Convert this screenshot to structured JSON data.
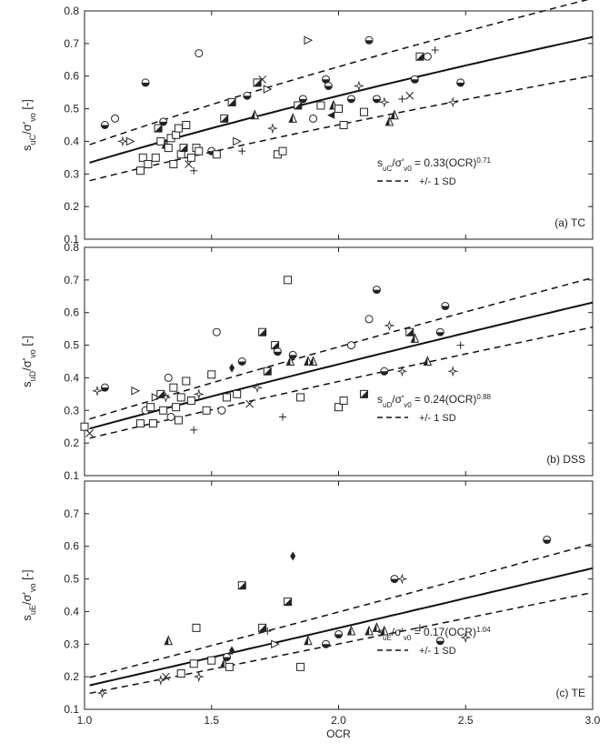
{
  "chart_data": [
    {
      "type": "scatter",
      "panel_label": "(a) TC",
      "ylabel_main": "s",
      "ylabel_sub1": "uC",
      "ylabel_mid": "/σ'",
      "ylabel_sub2": "vo",
      "ylabel_tail": " [-]",
      "eq_s": "s",
      "eq_s_sub": "uC",
      "eq_sigma": "/σ'",
      "eq_sigma_sub": "v0",
      "eq_body": " = 0.33(OCR)",
      "eq_exp": "0.71",
      "sd_label": "+/- 1 SD",
      "xlim": [
        1.0,
        3.0
      ],
      "ylim": [
        0.1,
        0.8
      ],
      "yticks": [
        0.1,
        0.2,
        0.3,
        0.4,
        0.5,
        0.6,
        0.7,
        0.8
      ],
      "fit": {
        "a": 0.33,
        "b": 0.71,
        "sd_factor": 0.165
      },
      "points": [
        [
          1.08,
          0.45,
          "hcirc"
        ],
        [
          1.12,
          0.47,
          "ocirc"
        ],
        [
          1.15,
          0.4,
          "star"
        ],
        [
          1.18,
          0.4,
          "tri"
        ],
        [
          1.22,
          0.31,
          "sq"
        ],
        [
          1.23,
          0.35,
          "sq"
        ],
        [
          1.25,
          0.33,
          "sq"
        ],
        [
          1.24,
          0.58,
          "hcirc"
        ],
        [
          1.28,
          0.35,
          "sq"
        ],
        [
          1.29,
          0.44,
          "dsq"
        ],
        [
          1.3,
          0.4,
          "sq"
        ],
        [
          1.31,
          0.46,
          "hcirc"
        ],
        [
          1.32,
          0.39,
          "dtri"
        ],
        [
          1.33,
          0.38,
          "sq"
        ],
        [
          1.34,
          0.41,
          "sq"
        ],
        [
          1.35,
          0.33,
          "sq"
        ],
        [
          1.36,
          0.42,
          "sq"
        ],
        [
          1.37,
          0.44,
          "sq"
        ],
        [
          1.38,
          0.36,
          "sq"
        ],
        [
          1.39,
          0.38,
          "dsq"
        ],
        [
          1.4,
          0.45,
          "sq"
        ],
        [
          1.41,
          0.33,
          "cross"
        ],
        [
          1.42,
          0.35,
          "sq"
        ],
        [
          1.43,
          0.31,
          "plus"
        ],
        [
          1.44,
          0.38,
          "sq"
        ],
        [
          1.45,
          0.37,
          "sq"
        ],
        [
          1.45,
          0.67,
          "ocirc"
        ],
        [
          1.5,
          0.37,
          "hcirc"
        ],
        [
          1.52,
          0.36,
          "sq"
        ],
        [
          1.55,
          0.47,
          "dsq"
        ],
        [
          1.58,
          0.52,
          "dsq"
        ],
        [
          1.6,
          0.4,
          "tri"
        ],
        [
          1.62,
          0.37,
          "plus"
        ],
        [
          1.64,
          0.54,
          "hcirc"
        ],
        [
          1.67,
          0.48,
          "dtri"
        ],
        [
          1.68,
          0.58,
          "dsq"
        ],
        [
          1.7,
          0.59,
          "cross"
        ],
        [
          1.72,
          0.56,
          "tri"
        ],
        [
          1.74,
          0.44,
          "star"
        ],
        [
          1.76,
          0.36,
          "sq"
        ],
        [
          1.78,
          0.37,
          "sq"
        ],
        [
          1.82,
          0.47,
          "dtri"
        ],
        [
          1.84,
          0.51,
          "dsq"
        ],
        [
          1.86,
          0.53,
          "hcirc"
        ],
        [
          1.88,
          0.71,
          "tri"
        ],
        [
          1.9,
          0.47,
          "ocirc"
        ],
        [
          1.93,
          0.51,
          "sq"
        ],
        [
          1.95,
          0.59,
          "hcirc"
        ],
        [
          1.96,
          0.57,
          "hcirc"
        ],
        [
          1.97,
          0.48,
          "ltri"
        ],
        [
          1.98,
          0.51,
          "dtri"
        ],
        [
          2.0,
          0.5,
          "sq"
        ],
        [
          2.02,
          0.45,
          "sq"
        ],
        [
          2.05,
          0.53,
          "hcirc"
        ],
        [
          2.08,
          0.57,
          "star"
        ],
        [
          2.1,
          0.49,
          "sq"
        ],
        [
          2.12,
          0.71,
          "hcirc"
        ],
        [
          2.15,
          0.53,
          "hcirc"
        ],
        [
          2.18,
          0.52,
          "star"
        ],
        [
          2.2,
          0.46,
          "dtri"
        ],
        [
          2.22,
          0.48,
          "dtri"
        ],
        [
          2.25,
          0.53,
          "plus"
        ],
        [
          2.28,
          0.54,
          "cross"
        ],
        [
          2.3,
          0.59,
          "hcirc"
        ],
        [
          2.32,
          0.66,
          "dsq"
        ],
        [
          2.35,
          0.66,
          "ocirc"
        ],
        [
          2.38,
          0.68,
          "plus"
        ],
        [
          2.45,
          0.52,
          "star"
        ],
        [
          2.48,
          0.58,
          "hcirc"
        ]
      ]
    },
    {
      "type": "scatter",
      "panel_label": "(b) DSS",
      "ylabel_main": "s",
      "ylabel_sub1": "uD",
      "ylabel_mid": "/σ'",
      "ylabel_sub2": "vo",
      "ylabel_tail": " [-]",
      "eq_s": "s",
      "eq_s_sub": "uD",
      "eq_sigma": "/σ'",
      "eq_sigma_sub": "v0",
      "eq_body": " = 0.24(OCR)",
      "eq_exp": "0.88",
      "sd_label": "+/- 1 SD",
      "xlim": [
        1.0,
        3.0
      ],
      "ylim": [
        0.1,
        0.8
      ],
      "yticks": [
        0.1,
        0.2,
        0.3,
        0.4,
        0.5,
        0.6,
        0.7,
        0.8
      ],
      "fit": {
        "a": 0.24,
        "b": 0.88,
        "sd_factor": 0.12
      },
      "points": [
        [
          1.0,
          0.25,
          "sq"
        ],
        [
          1.02,
          0.23,
          "cross"
        ],
        [
          1.05,
          0.36,
          "star"
        ],
        [
          1.08,
          0.37,
          "hcirc"
        ],
        [
          1.2,
          0.36,
          "tri"
        ],
        [
          1.22,
          0.26,
          "sq"
        ],
        [
          1.24,
          0.3,
          "ocirc"
        ],
        [
          1.26,
          0.31,
          "sq"
        ],
        [
          1.27,
          0.26,
          "sq"
        ],
        [
          1.28,
          0.34,
          "tri"
        ],
        [
          1.3,
          0.35,
          "dsq"
        ],
        [
          1.31,
          0.3,
          "sq"
        ],
        [
          1.32,
          0.34,
          "star"
        ],
        [
          1.33,
          0.4,
          "ocirc"
        ],
        [
          1.34,
          0.28,
          "ocirc"
        ],
        [
          1.35,
          0.37,
          "sq"
        ],
        [
          1.36,
          0.31,
          "sq"
        ],
        [
          1.37,
          0.27,
          "sq"
        ],
        [
          1.38,
          0.34,
          "sq"
        ],
        [
          1.4,
          0.39,
          "sq"
        ],
        [
          1.42,
          0.33,
          "sq"
        ],
        [
          1.43,
          0.24,
          "plus"
        ],
        [
          1.45,
          0.35,
          "star"
        ],
        [
          1.48,
          0.3,
          "sq"
        ],
        [
          1.5,
          0.41,
          "sq"
        ],
        [
          1.52,
          0.54,
          "ocirc"
        ],
        [
          1.54,
          0.3,
          "ocirc"
        ],
        [
          1.56,
          0.34,
          "sq"
        ],
        [
          1.58,
          0.43,
          "diamond"
        ],
        [
          1.6,
          0.35,
          "sq"
        ],
        [
          1.62,
          0.45,
          "hcirc"
        ],
        [
          1.65,
          0.32,
          "cross"
        ],
        [
          1.68,
          0.37,
          "star"
        ],
        [
          1.7,
          0.54,
          "dsq"
        ],
        [
          1.72,
          0.42,
          "dsq"
        ],
        [
          1.75,
          0.5,
          "dsq"
        ],
        [
          1.76,
          0.48,
          "hcirc"
        ],
        [
          1.78,
          0.28,
          "plus"
        ],
        [
          1.8,
          0.7,
          "sq"
        ],
        [
          1.81,
          0.45,
          "dtri"
        ],
        [
          1.82,
          0.47,
          "hcirc"
        ],
        [
          1.85,
          0.34,
          "sq"
        ],
        [
          1.88,
          0.45,
          "dtri"
        ],
        [
          1.9,
          0.45,
          "dtri"
        ],
        [
          2.0,
          0.31,
          "sq"
        ],
        [
          2.02,
          0.33,
          "sq"
        ],
        [
          2.05,
          0.5,
          "ocirc"
        ],
        [
          2.1,
          0.35,
          "dsq"
        ],
        [
          2.12,
          0.58,
          "ocirc"
        ],
        [
          2.15,
          0.67,
          "hcirc"
        ],
        [
          2.18,
          0.42,
          "hcirc"
        ],
        [
          2.2,
          0.56,
          "star"
        ],
        [
          2.25,
          0.42,
          "star"
        ],
        [
          2.28,
          0.54,
          "dsq"
        ],
        [
          2.3,
          0.52,
          "dtri"
        ],
        [
          2.35,
          0.45,
          "dtri"
        ],
        [
          2.4,
          0.54,
          "hcirc"
        ],
        [
          2.42,
          0.62,
          "hcirc"
        ],
        [
          2.45,
          0.42,
          "star"
        ],
        [
          2.48,
          0.5,
          "plus"
        ]
      ]
    },
    {
      "type": "scatter",
      "panel_label": "(c) TE",
      "ylabel_main": "s",
      "ylabel_sub1": "uE",
      "ylabel_mid": "/σ'",
      "ylabel_sub2": "vo",
      "ylabel_tail": " [-]",
      "eq_s": "s",
      "eq_s_sub": "uE",
      "eq_sigma": "/σ'",
      "eq_sigma_sub": "v0",
      "eq_body": " = 0.17(OCR)",
      "eq_exp": "1.04",
      "sd_label": "+/- 1 SD",
      "xlim": [
        1.0,
        3.0
      ],
      "ylim": [
        0.1,
        0.8
      ],
      "yticks": [
        0.1,
        0.2,
        0.3,
        0.4,
        0.5,
        0.6,
        0.7
      ],
      "xticks": [
        1.0,
        1.5,
        2.0,
        2.5,
        3.0
      ],
      "xlabel": "OCR",
      "fit": {
        "a": 0.17,
        "b": 1.04,
        "sd_factor": 0.14
      },
      "points": [
        [
          1.07,
          0.15,
          "star"
        ],
        [
          1.3,
          0.19,
          "star"
        ],
        [
          1.32,
          0.2,
          "cross"
        ],
        [
          1.33,
          0.31,
          "dtri"
        ],
        [
          1.38,
          0.21,
          "sq"
        ],
        [
          1.43,
          0.24,
          "sq"
        ],
        [
          1.44,
          0.35,
          "sq"
        ],
        [
          1.45,
          0.2,
          "star"
        ],
        [
          1.5,
          0.25,
          "sq"
        ],
        [
          1.55,
          0.24,
          "dtri"
        ],
        [
          1.56,
          0.26,
          "hcirc"
        ],
        [
          1.57,
          0.23,
          "sq"
        ],
        [
          1.58,
          0.28,
          "diamond"
        ],
        [
          1.62,
          0.48,
          "dsq"
        ],
        [
          1.7,
          0.35,
          "dsq"
        ],
        [
          1.72,
          0.34,
          "plus"
        ],
        [
          1.75,
          0.3,
          "tri"
        ],
        [
          1.8,
          0.43,
          "dsq"
        ],
        [
          1.82,
          0.57,
          "diamond"
        ],
        [
          1.85,
          0.23,
          "sq"
        ],
        [
          1.88,
          0.31,
          "dtri"
        ],
        [
          1.95,
          0.3,
          "hcirc"
        ],
        [
          2.0,
          0.33,
          "hcirc"
        ],
        [
          2.05,
          0.34,
          "dtri"
        ],
        [
          2.12,
          0.34,
          "dtri"
        ],
        [
          2.15,
          0.35,
          "dtri"
        ],
        [
          2.18,
          0.34,
          "dtri"
        ],
        [
          2.22,
          0.5,
          "hcirc"
        ],
        [
          2.25,
          0.5,
          "star"
        ],
        [
          2.32,
          0.35,
          "plus"
        ],
        [
          2.4,
          0.31,
          "hcirc"
        ],
        [
          2.5,
          0.32,
          "star"
        ],
        [
          2.82,
          0.62,
          "hcirc"
        ]
      ]
    }
  ]
}
